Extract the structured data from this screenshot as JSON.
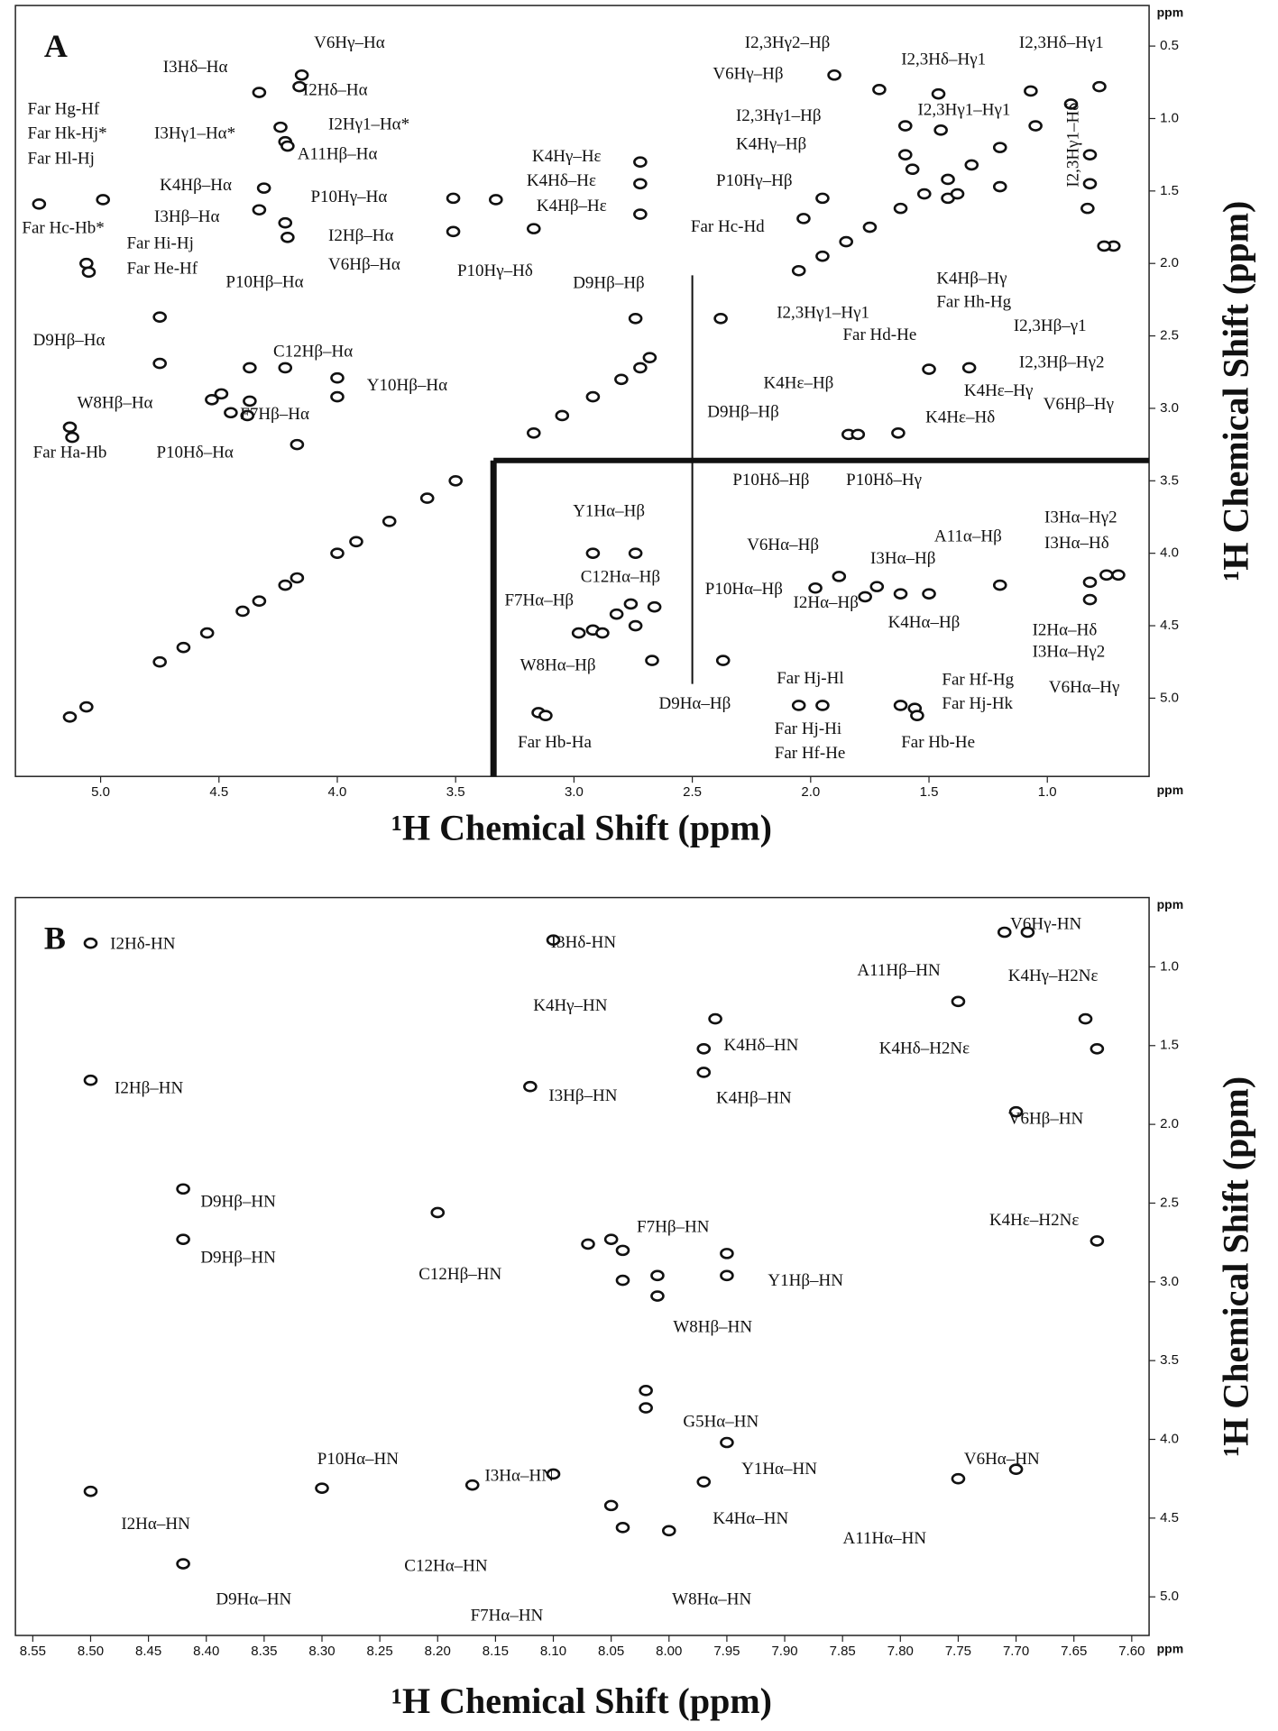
{
  "chart_data": [
    {
      "type": "contour",
      "label": "A",
      "x_label": "¹H Chemical Shift (ppm)",
      "y_label": "¹H Chemical Shift (ppm)",
      "x_unit": "ppm",
      "y_unit": "ppm",
      "xlim": [
        5.36,
        0.57
      ],
      "ylim": [
        0.22,
        5.54
      ],
      "xticks": [
        {
          "value": 5,
          "label": "5.0"
        },
        4.5,
        {
          "value": 4,
          "label": "4.0"
        },
        3.5,
        {
          "value": 3,
          "label": "3.0"
        },
        2.5,
        {
          "value": 2,
          "label": "2.0"
        },
        1.5,
        {
          "value": 1,
          "label": "1.0"
        }
      ],
      "yticks": [
        0.5,
        {
          "value": 1,
          "label": "1.0"
        },
        1.5,
        {
          "value": 2,
          "label": "2.0"
        },
        2.5,
        {
          "value": 3,
          "label": "3.0"
        },
        3.5,
        {
          "value": 4,
          "label": "4.0"
        },
        4.5,
        {
          "value": 5,
          "label": "5.0"
        }
      ],
      "ridges_x": [
        3.34,
        2.5
      ],
      "ridges_y": [
        3.36
      ],
      "peaks": {
        "x": [
          4.15,
          4.16,
          4.33,
          4.24,
          4.22,
          4.21,
          4.31,
          4.33,
          4.22,
          4.21,
          4.99,
          5.26,
          5.06,
          5.05,
          2.72,
          2.72,
          2.72,
          3.51,
          3.51,
          3.33,
          3.17,
          4.75,
          4.75,
          2.74,
          2.68,
          4.37,
          4.22,
          4.53,
          4.49,
          4.45,
          4.37,
          4.38,
          4.0,
          4.0,
          5.13,
          5.12,
          4.17,
          1.71,
          1.9,
          1.46,
          1.07,
          1.6,
          1.45,
          1.6,
          1.57,
          1.95,
          2.03,
          1.42,
          1.38,
          1.2,
          0.82,
          0.83,
          0.82,
          0.72,
          0.76,
          1.5,
          1.33,
          1.84,
          1.8,
          1.63,
          2.92,
          2.74,
          2.76,
          2.66,
          2.82,
          2.74,
          2.98,
          2.92,
          2.88,
          2.67,
          2.37,
          3.15,
          3.12,
          1.88,
          1.72,
          1.2,
          1.98,
          1.77,
          1.62,
          1.5,
          0.82,
          0.82,
          0.75,
          0.7,
          1.62,
          1.56,
          1.55,
          2.05,
          1.95,
          5.13,
          5.06,
          4.75,
          4.65,
          4.55,
          4.4,
          4.33,
          4.22,
          4.17,
          4.0,
          3.92,
          3.78,
          3.62,
          3.5,
          3.17,
          3.05,
          2.92,
          2.8,
          2.72,
          2.38,
          2.05,
          1.95,
          1.85,
          1.75,
          1.62,
          1.52,
          1.42,
          1.32,
          1.2,
          1.05,
          0.9,
          0.78
        ],
        "y": [
          0.7,
          0.78,
          0.82,
          1.06,
          1.16,
          1.19,
          1.48,
          1.63,
          1.72,
          1.82,
          1.56,
          1.59,
          2.0,
          2.06,
          1.3,
          1.45,
          1.66,
          1.55,
          1.78,
          1.56,
          1.76,
          2.37,
          2.69,
          2.38,
          2.65,
          2.72,
          2.72,
          2.94,
          2.9,
          3.03,
          2.95,
          3.05,
          2.79,
          2.92,
          3.13,
          3.2,
          3.25,
          0.8,
          0.7,
          0.83,
          0.81,
          1.05,
          1.08,
          1.25,
          1.35,
          1.55,
          1.69,
          1.55,
          1.52,
          1.47,
          1.45,
          1.62,
          1.25,
          1.88,
          1.88,
          2.73,
          2.72,
          3.18,
          3.18,
          3.17,
          4.0,
          4.0,
          4.35,
          4.37,
          4.42,
          4.5,
          4.55,
          4.53,
          4.55,
          4.74,
          4.74,
          5.1,
          5.12,
          4.16,
          4.23,
          4.22,
          4.24,
          4.3,
          4.28,
          4.28,
          4.2,
          4.32,
          4.15,
          4.15,
          5.05,
          5.07,
          5.12,
          5.05,
          5.05,
          5.13,
          5.06,
          4.75,
          4.65,
          4.55,
          4.4,
          4.33,
          4.22,
          4.17,
          4.0,
          3.92,
          3.78,
          3.62,
          3.5,
          3.17,
          3.05,
          2.92,
          2.8,
          2.72,
          2.38,
          2.05,
          1.95,
          1.85,
          1.75,
          1.62,
          1.52,
          1.42,
          1.32,
          1.2,
          1.05,
          0.9,
          0.78
        ]
      },
      "annotations": [
        "V6Hγ–Hα",
        "I3Hδ–Hα",
        "I2Hδ–Hα",
        "Far Hg-Hf",
        "Far Hk-Hj*",
        "Far Hl-Hj",
        "I3Hγ1–Hα*",
        "I2Hγ1–Hα*",
        "A11Hβ–Hα",
        "K4Hβ–Hα",
        "P10Hγ–Hα",
        "I3Hβ–Hα",
        "Far Hc-Hb*",
        "Far Hi-Hj",
        "I2Hβ–Hα",
        "Far He-Hf",
        "V6Hβ–Hα",
        "P10Hβ–Hα",
        "K4Hγ–Hε",
        "K4Hδ–Hε",
        "K4Hβ–Hε",
        "P10Hγ–Hδ",
        "D9Hβ–Hα",
        "C12Hβ–Hα",
        "Y10Hβ–Hα",
        "W8Hβ–Hα",
        "F7Hβ–Hα",
        "Far Ha-Hb",
        "P10Hδ–Hα",
        "D9Hβ–Hβ",
        "D9Hβ–Hβ",
        "I2,3Hγ2–Hβ",
        "V6Hγ–Hβ",
        "I2,3Hδ–Hγ1",
        "I2,3Hδ–Hγ1",
        "I2,3Hγ1–Hβ",
        "I2,3Hγ1–Hγ1",
        "K4Hγ–Hβ",
        "P10Hγ–Hβ",
        "Far Hc-Hd",
        "I2,3Hγ1–Hδ",
        "K4Hβ–Hγ",
        "Far Hh-Hg",
        "I2,3Hγ1–Hγ1",
        "Far Hd-He",
        "I2,3Hβ–γ1",
        "I2,3Hβ–Hγ2",
        "V6Hβ–Hγ",
        "K4Hε–Hβ",
        "K4Hε–Hγ",
        "K4Hε–Hδ",
        "P10Hδ–Hβ",
        "P10Hδ–Hγ",
        "Y1Hα–Hβ",
        "C12Hα–Hβ",
        "F7Hα–Hβ",
        "W8Hα–Hβ",
        "D9Hα–Hβ",
        "Far Hb-Ha",
        "V6Hα–Hβ",
        "A11α–Hβ",
        "I3Hα–Hβ",
        "P10Hα–Hβ",
        "I2Hα–Hβ",
        "K4Hα–Hβ",
        "I3Hα–Hγ2",
        "I3Hα–Hδ",
        "I2Hα–Hδ",
        "I3Hα–Hγ2",
        "V6Hα–Hγ",
        "Far Hj-Hl",
        "Far Hf-Hg",
        "Far Hj-Hk",
        "Far Hj-Hi",
        "Far Hf-He",
        "Far Hb-He"
      ]
    },
    {
      "type": "contour",
      "label": "B",
      "x_label": "¹H Chemical Shift (ppm)",
      "y_label": "¹H Chemical Shift (ppm)",
      "x_unit": "ppm",
      "y_unit": "ppm",
      "xlim": [
        8.565,
        7.585
      ],
      "ylim": [
        0.56,
        5.245
      ],
      "xticks": [
        8.55,
        {
          "value": 8.5,
          "label": "8.50"
        },
        8.45,
        {
          "value": 8.4,
          "label": "8.40"
        },
        8.35,
        {
          "value": 8.3,
          "label": "8.30"
        },
        8.25,
        {
          "value": 8.2,
          "label": "8.20"
        },
        8.15,
        {
          "value": 8.1,
          "label": "8.10"
        },
        8.05,
        {
          "value": 8,
          "label": "8.00"
        },
        7.95,
        {
          "value": 7.9,
          "label": "7.90"
        },
        7.85,
        {
          "value": 7.8,
          "label": "7.80"
        },
        7.75,
        {
          "value": 7.7,
          "label": "7.70"
        },
        7.65,
        {
          "value": 7.6,
          "label": "7.60"
        }
      ],
      "yticks": [
        {
          "value": 1,
          "label": "1.0"
        },
        1.5,
        {
          "value": 2,
          "label": "2.0"
        },
        2.5,
        {
          "value": 3,
          "label": "3.0"
        },
        3.5,
        {
          "value": 4,
          "label": "4.0"
        },
        4.5,
        {
          "value": 5,
          "label": "5.0"
        }
      ],
      "peaks": {
        "x": [
          8.5,
          8.1,
          7.71,
          7.69,
          7.75,
          7.64,
          7.96,
          7.97,
          7.63,
          8.5,
          8.12,
          7.97,
          7.7,
          8.42,
          8.42,
          8.05,
          8.04,
          8.07,
          7.95,
          7.95,
          8.01,
          8.01,
          8.04,
          7.63,
          8.2,
          8.02,
          8.02,
          8.17,
          8.3,
          8.1,
          7.95,
          7.7,
          8.5,
          7.97,
          7.75,
          8.05,
          8.04,
          8.0,
          8.42
        ],
        "y": [
          0.85,
          0.83,
          0.78,
          0.78,
          1.22,
          1.33,
          1.33,
          1.52,
          1.52,
          1.72,
          1.76,
          1.67,
          1.92,
          2.41,
          2.73,
          2.73,
          2.8,
          2.76,
          2.82,
          2.96,
          2.96,
          3.09,
          2.99,
          2.74,
          2.56,
          3.69,
          3.8,
          4.29,
          4.31,
          4.22,
          4.02,
          4.19,
          4.33,
          4.27,
          4.25,
          4.42,
          4.56,
          4.58,
          4.79
        ]
      },
      "annotations": [
        "I2Hδ-HN",
        "I3Hδ-HN",
        "V6Hγ-HN",
        "A11Hβ–HN",
        "K4Hγ–H2Nε",
        "K4Hγ–HN",
        "K4Hδ–HN",
        "K4Hδ–H2Nε",
        "I2Hβ–HN",
        "I3Hβ–HN",
        "K4Hβ–HN",
        "V6Hβ–HN",
        "D9Hβ–HN",
        "D9Hβ–HN",
        "F7Hβ–HN",
        "K4Hε–H2Nε",
        "C12Hβ–HN",
        "Y1Hβ–HN",
        "W8Hβ–HN",
        "G5Hα–HN",
        "P10Hα–HN",
        "I3Hα–HN",
        "Y1Hα–HN",
        "V6Hα–HN",
        "I2Hα–HN",
        "K4Hα–HN",
        "A11Hα–HN",
        "C12Hα–HN",
        "D9Hα–HN",
        "W8Hα–HN",
        "F7Hα–HN"
      ]
    }
  ]
}
